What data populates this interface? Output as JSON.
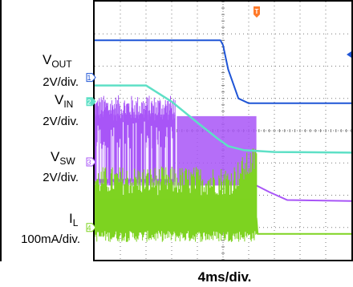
{
  "chart_data": {
    "type": "line",
    "title": "",
    "xlabel": "4ms/div.",
    "divisions": {
      "x": 10,
      "y": 8
    },
    "trigger_marker": "T",
    "colors": {
      "vout": "#1f55d6",
      "vin": "#5ee0c6",
      "vsw": "#a855f7",
      "il": "#7ed321",
      "grid": "#7a7a7a",
      "frame": "#000000"
    },
    "channels": [
      {
        "id": "vout",
        "marker": "1",
        "name_main": "V",
        "name_sub": "OUT",
        "scale": "2V/div."
      },
      {
        "id": "vin",
        "marker": "2",
        "name_main": "V",
        "name_sub": "IN",
        "scale": "2V/div."
      },
      {
        "id": "vsw",
        "marker": "3",
        "name_main": "V",
        "name_sub": "SW",
        "scale": "2V/div."
      },
      {
        "id": "il",
        "marker": "4",
        "name_main": "I",
        "name_sub": "L",
        "scale": "100mA/div."
      }
    ],
    "series": [
      {
        "id": "vout",
        "x": [
          0,
          4.9,
          5.0,
          5.2,
          5.6,
          6.0,
          10
        ],
        "y": [
          6.8,
          6.8,
          6.65,
          5.9,
          5.0,
          4.85,
          4.85
        ]
      },
      {
        "id": "vin",
        "x": [
          0,
          2.0,
          3.0,
          4.0,
          4.8,
          5.2,
          5.8,
          7.0,
          10
        ],
        "y": [
          5.4,
          5.4,
          4.9,
          4.25,
          3.75,
          3.52,
          3.4,
          3.34,
          3.32
        ]
      },
      {
        "id": "vsw",
        "x": [
          0,
          3.1,
          3.2,
          6.2,
          6.3,
          6.8,
          7.5,
          10
        ],
        "y": [
          3.5,
          3.5,
          3.5,
          3.5,
          2.3,
          2.1,
          1.85,
          1.82
        ]
      },
      {
        "id": "il",
        "x": [
          0,
          6.3,
          6.35,
          10
        ],
        "y": [
          1.3,
          1.3,
          0.8,
          0.8
        ]
      }
    ]
  }
}
